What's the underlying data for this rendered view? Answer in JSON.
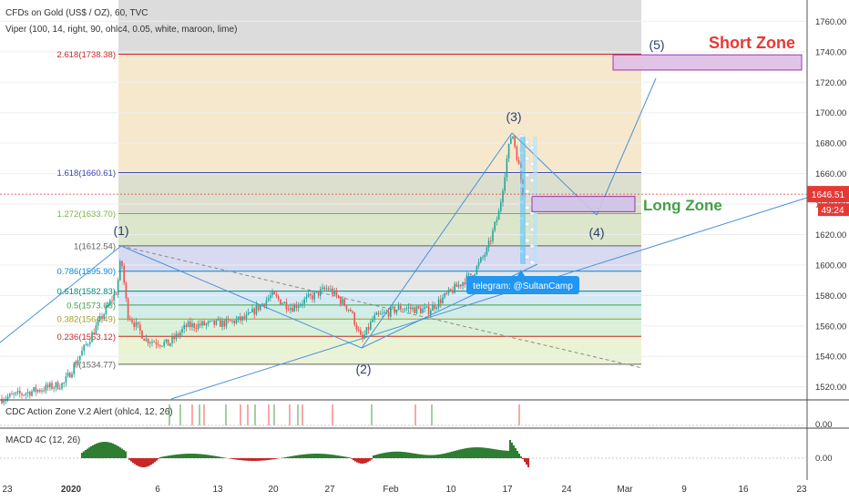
{
  "header": {
    "symbol": "CFDs on Gold (US$ / OZ), 60, TVC",
    "indicator": "Viper (100, 14, right, 90, ohlc4, 0.05, white, maroon, lime)"
  },
  "colors": {
    "candle_up": "#26a69a",
    "candle_down": "#ef5350",
    "trendline": "#4a90d9",
    "price_line": "#e53935",
    "short_zone": "#e53935",
    "long_zone": "#43a047"
  },
  "chart_data": [
    {
      "type": "candlestick",
      "y_axis": {
        "ticks": [
          1520,
          1540,
          1560,
          1580,
          1600,
          1620,
          1640,
          1660,
          1680,
          1700,
          1720,
          1740,
          1760
        ],
        "range": [
          1512,
          1774
        ]
      },
      "x_axis": {
        "ticks": [
          "23",
          "2020",
          "6",
          "13",
          "20",
          "27",
          "Feb",
          "10",
          "17",
          "24",
          "Mar",
          "9",
          "16",
          "23"
        ]
      },
      "current_price": {
        "value": 1646.51,
        "label": "1646.51",
        "countdown": "49:24"
      },
      "fib_levels": [
        {
          "label": "2.618(1738.38)",
          "value": 1738.38,
          "color": "#c62828"
        },
        {
          "label": "1.618(1660.61)",
          "value": 1660.61,
          "color": "#3949ab"
        },
        {
          "label": "1.272(1633.70)",
          "value": 1633.7,
          "color": "#7cb342"
        },
        {
          "label": "1(1612.54)",
          "value": 1612.54,
          "color": "#616161"
        },
        {
          "label": "0.786(1595.90)",
          "value": 1595.9,
          "color": "#0288d1"
        },
        {
          "label": "0.618(1582.83)",
          "value": 1582.83,
          "color": "#00897b"
        },
        {
          "label": "0.5(1573.66)",
          "value": 1573.66,
          "color": "#43a047"
        },
        {
          "label": "0.382(1564.49)",
          "value": 1564.49,
          "color": "#9e9d24"
        },
        {
          "label": "0.236(1553.12)",
          "value": 1553.12,
          "color": "#c62828"
        },
        {
          "label": "0(1534.77)",
          "value": 1534.77,
          "color": "#616161"
        }
      ],
      "wave_labels": [
        {
          "label": "(1)",
          "value": 1614
        },
        {
          "label": "(2)",
          "value": 1547
        },
        {
          "label": "(3)",
          "value": 1693
        },
        {
          "label": "(4)",
          "value": 1636
        },
        {
          "label": "(5)",
          "value": 1745
        }
      ],
      "zones": [
        {
          "label": "Short Zone",
          "low": 1728,
          "high": 1738
        },
        {
          "label": "Long Zone",
          "low": 1635,
          "high": 1645
        }
      ],
      "annotations": [
        "telegram: @SultanCamp"
      ]
    },
    {
      "type": "bar",
      "title": "CDC Action Zone V.2 Alert (ohlc4, 12, 26)",
      "y_axis": {
        "ticks": [
          0.0
        ]
      },
      "tick_labels": [
        "0.00"
      ]
    },
    {
      "type": "area",
      "title": "MACD 4C (12, 26)",
      "y_axis": {
        "ticks": [
          0.0
        ]
      },
      "tick_labels": [
        "0.00"
      ]
    }
  ]
}
